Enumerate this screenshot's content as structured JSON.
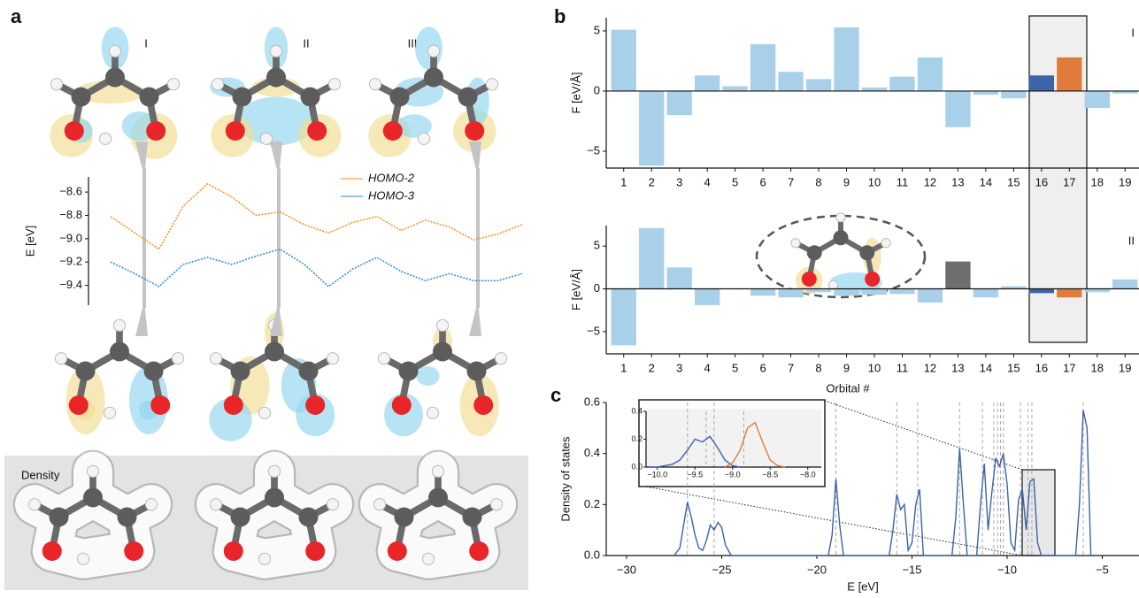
{
  "figure": {
    "panels": [
      "a",
      "b",
      "c"
    ],
    "structure_labels": [
      "I",
      "II",
      "III"
    ],
    "density_label": "Density"
  },
  "chart_data": [
    {
      "type": "line",
      "ylabel": "E [eV]",
      "ylim": [
        -9.57,
        -8.47
      ],
      "yticks": [
        {
          "value": -8.6,
          "label": "−8.6"
        },
        {
          "value": -8.8,
          "label": "−8.8"
        },
        {
          "value": -9.0,
          "label": "−9.0"
        },
        {
          "value": -9.2,
          "label": "−9.2"
        },
        {
          "value": -9.4,
          "label": "−9.4"
        }
      ],
      "series": [
        {
          "name": "HOMO-2",
          "color": "#f0962e",
          "values": [
            -8.81,
            -8.95,
            -9.09,
            -8.72,
            -8.53,
            -8.64,
            -8.8,
            -8.77,
            -8.88,
            -8.95,
            -8.86,
            -8.81,
            -8.93,
            -8.84,
            -8.9,
            -9.01,
            -8.96,
            -8.88
          ]
        },
        {
          "name": "HOMO-3",
          "color": "#3a8fd0",
          "values": [
            -9.2,
            -9.3,
            -9.41,
            -9.22,
            -9.16,
            -9.22,
            -9.15,
            -9.09,
            -9.22,
            -9.41,
            -9.26,
            -9.16,
            -9.28,
            -9.36,
            -9.3,
            -9.36,
            -9.36,
            -9.3
          ]
        }
      ]
    },
    {
      "type": "bar",
      "title": "I",
      "ylabel": "F [eV/Å]",
      "categories": [
        "1",
        "2",
        "3",
        "4",
        "5",
        "6",
        "7",
        "8",
        "9",
        "10",
        "11",
        "12",
        "13",
        "14",
        "15",
        "16",
        "17",
        "18",
        "19"
      ],
      "values": [
        5.1,
        -6.2,
        -2.0,
        1.3,
        0.4,
        3.9,
        1.6,
        1.0,
        5.3,
        0.3,
        1.2,
        2.8,
        -3.0,
        -0.3,
        -0.6,
        1.3,
        2.8,
        -1.4,
        -0.2
      ],
      "colors": [
        "#a8d0e8",
        "#a8d0e8",
        "#a8d0e8",
        "#a8d0e8",
        "#a8d0e8",
        "#a8d0e8",
        "#a8d0e8",
        "#a8d0e8",
        "#a8d0e8",
        "#a8d0e8",
        "#a8d0e8",
        "#a8d0e8",
        "#a8d0e8",
        "#a8d0e8",
        "#a8d0e8",
        "#3d63a8",
        "#e07b3c",
        "#a8d0e8",
        "#a8d0e8"
      ],
      "ylim": [
        -6.4,
        6.1
      ],
      "yticks": [
        {
          "value": -5,
          "label": "−5"
        },
        0,
        5
      ]
    },
    {
      "type": "bar",
      "title": "II",
      "ylabel": "F [eV/Å]",
      "xlabel": "Orbital #",
      "categories": [
        "1",
        "2",
        "3",
        "4",
        "5",
        "6",
        "7",
        "8",
        "9",
        "10",
        "11",
        "12",
        "13",
        "14",
        "15",
        "16",
        "17",
        "18",
        "19"
      ],
      "values": [
        -6.6,
        7.1,
        2.5,
        -1.9,
        0,
        -0.8,
        -1.0,
        -0.4,
        -0.8,
        -0.7,
        -0.6,
        -1.6,
        3.2,
        -1.0,
        0.3,
        -0.5,
        -1.0,
        -0.4,
        1.1
      ],
      "colors": [
        "#a8d0e8",
        "#a8d0e8",
        "#a8d0e8",
        "#a8d0e8",
        "#a8d0e8",
        "#a8d0e8",
        "#a8d0e8",
        "#a8d0e8",
        "#a8d0e8",
        "#a8d0e8",
        "#a8d0e8",
        "#a8d0e8",
        "#6e6e6e",
        "#a8d0e8",
        "#a8d0e8",
        "#3d63a8",
        "#e07b3c",
        "#a8d0e8",
        "#a8d0e8"
      ],
      "ylim": [
        -7.6,
        7.4
      ],
      "yticks": [
        {
          "value": -5,
          "label": "−5"
        },
        0,
        5
      ]
    },
    {
      "type": "line",
      "xlabel": "E [eV]",
      "ylabel": "Density of states",
      "x": [
        -27.5,
        -27.2,
        -27.0,
        -26.8,
        -26.6,
        -26.4,
        -26.2,
        -26.0,
        -25.8,
        -25.6,
        -25.4,
        -25.2,
        -25.0,
        -24.8,
        -24.5,
        -19.4,
        -19.2,
        -19.0,
        -18.8,
        -18.6,
        -16.2,
        -16.0,
        -15.8,
        -15.6,
        -15.4,
        -15.2,
        -15.0,
        -14.8,
        -14.6,
        -14.4,
        -12.9,
        -12.7,
        -12.5,
        -12.3,
        -12.1,
        -11.6,
        -11.4,
        -11.2,
        -11.0,
        -10.8,
        -10.6,
        -10.4,
        -10.2,
        -10.0,
        -9.8,
        -9.6,
        -9.4,
        -9.2,
        -9.0,
        -8.8,
        -8.6,
        -8.4,
        -8.2,
        -6.4,
        -6.2,
        -6.0,
        -5.8,
        -5.6
      ],
      "series": [
        {
          "color": "#3d63a8",
          "values": [
            0,
            0.03,
            0.12,
            0.21,
            0.15,
            0.08,
            0.03,
            0.02,
            0.06,
            0.12,
            0.1,
            0.13,
            0.11,
            0.04,
            0,
            0,
            0.08,
            0.3,
            0.12,
            0,
            0,
            0.1,
            0.24,
            0.18,
            0.2,
            0.02,
            0.05,
            0.2,
            0.26,
            0,
            0,
            0.15,
            0.42,
            0.2,
            0,
            0,
            0.2,
            0.36,
            0.1,
            0.25,
            0.38,
            0.35,
            0.4,
            0.28,
            0.05,
            0.02,
            0.22,
            0.26,
            0.1,
            0.29,
            0.3,
            0.05,
            0,
            0,
            0.2,
            0.57,
            0.5,
            0
          ]
        }
      ],
      "vlines": [
        -26.8,
        -25.4,
        -19.0,
        -15.8,
        -14.7,
        -12.5,
        -11.3,
        -10.7,
        -10.5,
        -10.35,
        -10.2,
        -9.3,
        -8.9,
        -8.7,
        -6.0
      ],
      "xlim": [
        -31.07,
        -3.07
      ],
      "ylim": [
        0,
        0.6
      ],
      "xticks": [
        {
          "value": -30,
          "label": "−30"
        },
        {
          "value": -25,
          "label": "−25"
        },
        {
          "value": -20,
          "label": "−20"
        },
        {
          "value": -15,
          "label": "−15"
        },
        {
          "value": -10,
          "label": "−10"
        },
        {
          "value": -5,
          "label": "−5"
        }
      ],
      "yticks": [
        {
          "value": 0,
          "label": "0.0"
        },
        0.2,
        0.4,
        0.6
      ]
    },
    {
      "type": "line",
      "x": [
        -10.1,
        -10.0,
        -9.9,
        -9.8,
        -9.7,
        -9.6,
        -9.5,
        -9.4,
        -9.3,
        -9.2,
        -9.1,
        -9.0,
        -8.9,
        -8.8,
        -8.7,
        -8.6,
        -8.5,
        -8.4,
        -8.3
      ],
      "series": [
        {
          "color": "#3d63a8",
          "values": [
            0,
            0,
            0.01,
            0.02,
            0.05,
            0.12,
            0.2,
            0.18,
            0.22,
            0.14,
            0.05,
            0.01,
            0,
            null,
            null,
            null,
            null,
            null,
            null
          ]
        },
        {
          "color": "#e07b3c",
          "values": [
            null,
            null,
            null,
            null,
            null,
            null,
            null,
            null,
            null,
            null,
            0,
            0.03,
            0.12,
            0.28,
            0.32,
            0.18,
            0.05,
            0.01,
            0
          ]
        }
      ],
      "vlines": [
        -9.35,
        -8.85
      ],
      "xlim": [
        -10.15,
        -7.82
      ],
      "ylim": [
        0,
        0.4
      ],
      "xticks": [
        {
          "value": -10.0,
          "label": "−10.0"
        },
        {
          "value": -9.5,
          "label": "−9.5"
        },
        {
          "value": -9.0,
          "label": "−9.0"
        },
        {
          "value": -8.5,
          "label": "−8.5"
        },
        {
          "value": -8.0,
          "label": "−8.0"
        }
      ],
      "yticks": [
        {
          "value": 0,
          "label": "0.0"
        },
        0.2,
        0.4
      ]
    }
  ]
}
